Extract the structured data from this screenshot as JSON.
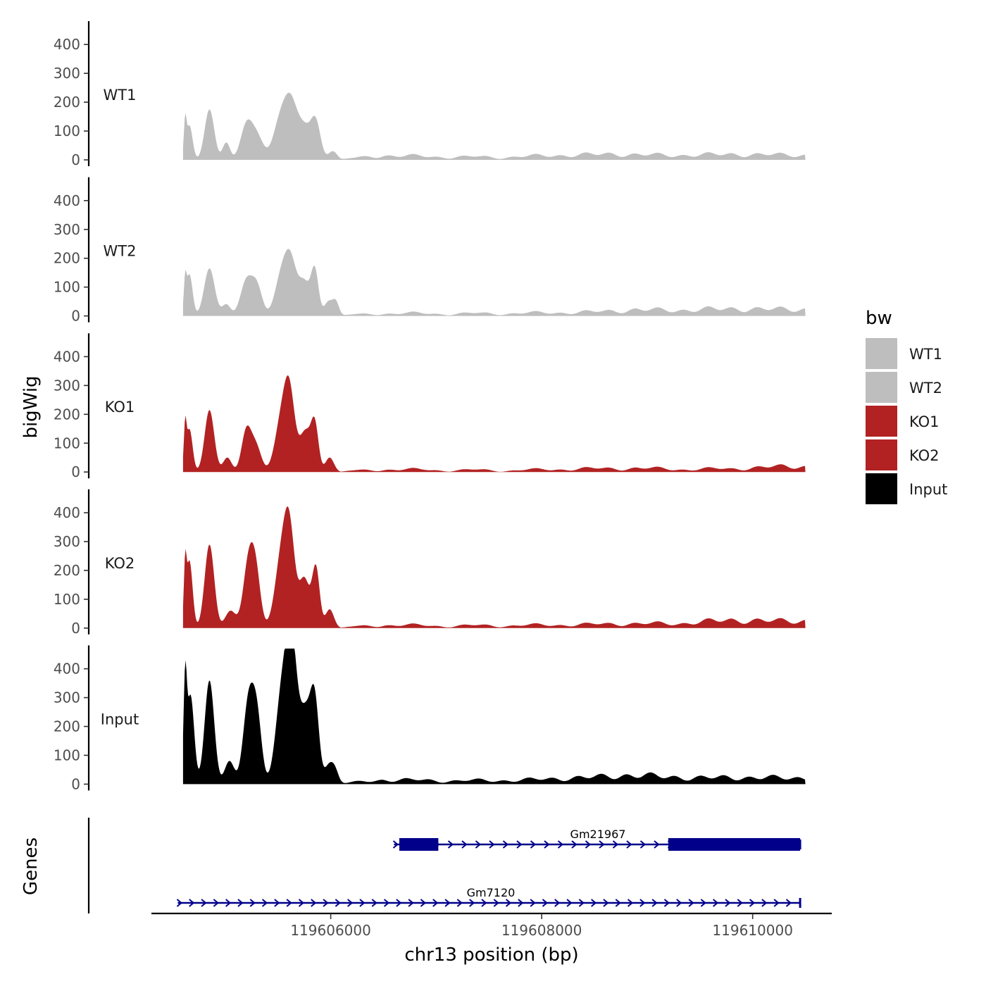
{
  "chart_data": {
    "type": "area",
    "title": "",
    "ylabel": "bigWig",
    "genes_label": "Genes",
    "xlabel": "chr13 position (bp)",
    "chromosome": "chr13",
    "xlim": [
      119604300,
      119610750
    ],
    "x_range_data": [
      119604600,
      119610500
    ],
    "x_ticks": [
      119606000,
      119608000,
      119610000
    ],
    "x_tick_labels": [
      "119606000",
      "119608000",
      "119610000"
    ],
    "ylim": [
      0,
      480
    ],
    "y_ticks": [
      0,
      100,
      200,
      300,
      400
    ],
    "y_tick_labels": [
      "0",
      "100",
      "200",
      "300",
      "400"
    ],
    "grid": false,
    "legend": {
      "title": "bw",
      "position": "right"
    },
    "tracks": [
      {
        "name": "WT1",
        "color": "#bebebe",
        "peaks": [
          [
            119604620,
            110,
            12
          ],
          [
            119604660,
            120,
            30
          ],
          [
            119604850,
            175,
            45
          ],
          [
            119605010,
            60,
            35
          ],
          [
            119605200,
            115,
            55
          ],
          [
            119605300,
            80,
            60
          ],
          [
            119605520,
            130,
            65
          ],
          [
            119605620,
            170,
            60
          ],
          [
            119605750,
            110,
            70
          ],
          [
            119605860,
            115,
            45
          ],
          [
            119606020,
            30,
            40
          ]
        ],
        "bg": [
          [
            119606500,
            20
          ],
          [
            119607000,
            14
          ],
          [
            119607600,
            12
          ],
          [
            119608300,
            22
          ],
          [
            119608700,
            26
          ],
          [
            119609200,
            20
          ],
          [
            119609800,
            25
          ],
          [
            119610300,
            22
          ]
        ]
      },
      {
        "name": "WT2",
        "color": "#bebebe",
        "peaks": [
          [
            119604620,
            95,
            12
          ],
          [
            119604660,
            145,
            30
          ],
          [
            119604850,
            165,
            50
          ],
          [
            119605010,
            40,
            40
          ],
          [
            119605200,
            120,
            55
          ],
          [
            119605300,
            100,
            50
          ],
          [
            119605530,
            130,
            60
          ],
          [
            119605620,
            175,
            55
          ],
          [
            119605750,
            115,
            55
          ],
          [
            119605850,
            150,
            35
          ],
          [
            119605980,
            50,
            40
          ],
          [
            119606050,
            45,
            30
          ]
        ],
        "bg": [
          [
            119606500,
            12
          ],
          [
            119607200,
            10
          ],
          [
            119607800,
            12
          ],
          [
            119608500,
            18
          ],
          [
            119608900,
            28
          ],
          [
            119609300,
            25
          ],
          [
            119609700,
            32
          ],
          [
            119610300,
            30
          ]
        ]
      },
      {
        "name": "KO1",
        "color": "#b22222",
        "peaks": [
          [
            119604620,
            130,
            12
          ],
          [
            119604660,
            150,
            30
          ],
          [
            119604850,
            215,
            45
          ],
          [
            119605020,
            50,
            40
          ],
          [
            119605200,
            140,
            45
          ],
          [
            119605290,
            90,
            50
          ],
          [
            119605530,
            170,
            60
          ],
          [
            119605610,
            250,
            50
          ],
          [
            119605760,
            140,
            55
          ],
          [
            119605850,
            150,
            35
          ],
          [
            119605990,
            50,
            40
          ]
        ],
        "bg": [
          [
            119606500,
            12
          ],
          [
            119607200,
            8
          ],
          [
            119607800,
            8
          ],
          [
            119608300,
            14
          ],
          [
            119608900,
            17
          ],
          [
            119609400,
            12
          ],
          [
            119609800,
            15
          ],
          [
            119610300,
            25
          ]
        ]
      },
      {
        "name": "KO2",
        "color": "#b22222",
        "peaks": [
          [
            119604620,
            170,
            12
          ],
          [
            119604660,
            235,
            30
          ],
          [
            119604850,
            290,
            45
          ],
          [
            119605050,
            60,
            50
          ],
          [
            119605220,
            220,
            50
          ],
          [
            119605290,
            170,
            45
          ],
          [
            119605530,
            230,
            60
          ],
          [
            119605610,
            305,
            50
          ],
          [
            119605750,
            170,
            50
          ],
          [
            119605860,
            205,
            35
          ],
          [
            119605990,
            65,
            40
          ]
        ],
        "bg": [
          [
            119606500,
            14
          ],
          [
            119607100,
            10
          ],
          [
            119607800,
            12
          ],
          [
            119608400,
            16
          ],
          [
            119608800,
            20
          ],
          [
            119609300,
            20
          ],
          [
            119609700,
            35
          ],
          [
            119610300,
            32
          ]
        ]
      },
      {
        "name": "Input",
        "color": "#000000",
        "peaks": [
          [
            119604620,
            310,
            15
          ],
          [
            119604670,
            310,
            35
          ],
          [
            119604850,
            360,
            45
          ],
          [
            119605040,
            80,
            45
          ],
          [
            119605220,
            280,
            50
          ],
          [
            119605300,
            220,
            45
          ],
          [
            119605540,
            320,
            60
          ],
          [
            119605630,
            430,
            50
          ],
          [
            119605760,
            250,
            60
          ],
          [
            119605850,
            250,
            40
          ],
          [
            119605980,
            60,
            40
          ],
          [
            119606040,
            45,
            35
          ]
        ],
        "bg": [
          [
            119606500,
            20
          ],
          [
            119607200,
            15
          ],
          [
            119607800,
            18
          ],
          [
            119608300,
            28
          ],
          [
            119608900,
            40
          ],
          [
            119609400,
            28
          ],
          [
            119609800,
            30
          ],
          [
            119610300,
            28
          ]
        ]
      }
    ],
    "genes": [
      {
        "name": "Gm21967",
        "strand": "+",
        "start": 119606600,
        "end": 119610450,
        "exons": [
          [
            119606650,
            119607020
          ],
          [
            119609200,
            119610450
          ]
        ],
        "color": "#00008b"
      },
      {
        "name": "Gm7120",
        "strand": "+",
        "start": 119604550,
        "end": 119610450,
        "exons": [],
        "color": "#00008b"
      }
    ]
  }
}
